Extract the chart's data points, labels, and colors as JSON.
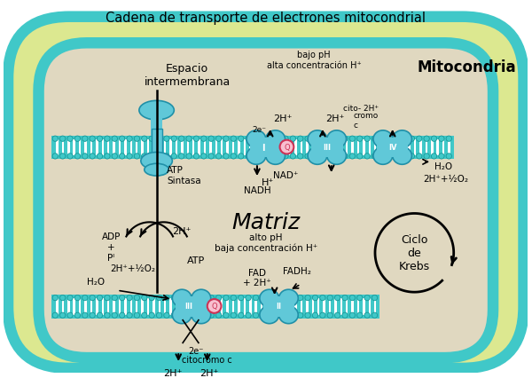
{
  "title": "Cadena de transporte de electrones mitocondrial",
  "bg_outer": "#e8e8a0",
  "bg_intermem": "#d4e890",
  "membrane_color": "#40c8c8",
  "protein_color": "#60c8d8",
  "protein_dark": "#2090a8",
  "matrix_color": "#e0d8c0",
  "fig_bg": "#ffffff",
  "text_color": "#000000",
  "labels": {
    "title": "Cadena de transporte de electrones mitocondrial",
    "espacio": "Espacio\nintermembrana",
    "mitocondria": "Mitocondria",
    "atp_sintasa": "ATP\nSintasa",
    "adp_pi": "ADP\n+\nPᴵ",
    "atp": "ATP",
    "2h_left": "2H⁺",
    "nadh": "NADH",
    "nad_plus": "NAD⁺",
    "h_plus": "H⁺",
    "2h_c1": "2H⁺",
    "cito_cromo": "cito- 2H⁺",
    "cito_cromo2": "cromo\nc",
    "2h_c2": "2H⁺",
    "h2o_right": "H₂O",
    "2h_half_o2": "2H⁺+½O₂",
    "bajo_ph": "bajo pH\nalta concentración H⁺",
    "matriz": "Matriz",
    "alto_ph": "alto pH\nbaja concentración H⁺",
    "ciclo_krebs": "Ciclo\nde\nKrebs",
    "h2o_lower": "H₂O",
    "2h_half_o2_lower": "2H⁺+½O₂",
    "fad": "FAD\n+ 2H⁺",
    "fadh2": "FADH₂",
    "citocromo_c_lower": "citocromo c",
    "2e_lower": "2e⁻",
    "2h_lower1": "2H⁺",
    "2h_lower2": "2H⁺",
    "2e_upper": "2e⁻",
    "roman_I": "I",
    "roman_II": "II",
    "roman_III": "III",
    "roman_IV": "IV"
  }
}
